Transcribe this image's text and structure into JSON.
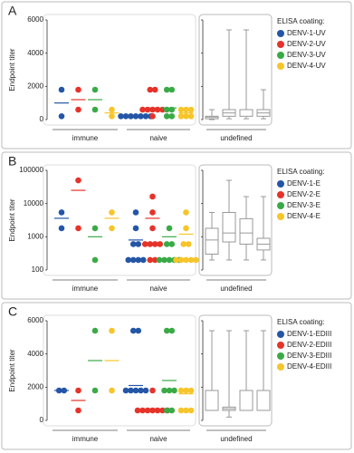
{
  "chart_data": [
    {
      "type": "strip",
      "label": "A",
      "y_label": "Endpoint titer",
      "ylim": [
        0,
        6000
      ],
      "yticks": [
        0,
        2000,
        4000,
        6000
      ],
      "log": false,
      "groups": [
        "immune",
        "naive",
        "undefined"
      ],
      "legend_title": "ELISA coating:",
      "series": [
        {
          "name": "DENV-1-UV",
          "color": "#2456a6",
          "immune": [
            1800,
            200
          ],
          "immune_mean": 1000,
          "naive": [
            200,
            200,
            200,
            200,
            200,
            200,
            200
          ],
          "naive_mean": 200,
          "undefined_box": [
            0,
            50,
            150,
            200,
            600
          ]
        },
        {
          "name": "DENV-2-UV",
          "color": "#e6332a",
          "immune": [
            1800,
            600
          ],
          "immune_mean": 1200,
          "naive": [
            1800,
            1800,
            600,
            600,
            600,
            600,
            600,
            200
          ],
          "naive_mean": 700,
          "undefined_box": [
            50,
            200,
            400,
            600,
            5400
          ]
        },
        {
          "name": "DENV-3-UV",
          "color": "#3aaa47",
          "immune": [
            1800,
            600
          ],
          "immune_mean": 1200,
          "naive": [
            1800,
            1800,
            600,
            600,
            200,
            200
          ],
          "naive_mean": 700,
          "undefined_box": [
            50,
            200,
            600,
            600,
            5400
          ]
        },
        {
          "name": "DENV-4-UV",
          "color": "#f6c52a",
          "immune": [
            200,
            600
          ],
          "immune_mean": 400,
          "naive": [
            600,
            600,
            200,
            200,
            200,
            600
          ],
          "naive_mean": 400,
          "undefined_box": [
            50,
            200,
            400,
            600,
            1800
          ]
        }
      ]
    },
    {
      "type": "strip",
      "label": "B",
      "y_label": "Endpoint titer",
      "ylim": [
        100,
        100000
      ],
      "yticks": [
        100,
        1000,
        10000,
        100000
      ],
      "log": true,
      "groups": [
        "immune",
        "naive",
        "undefined"
      ],
      "legend_title": "ELISA coating:",
      "series": [
        {
          "name": "DENV-1-E",
          "color": "#2456a6",
          "immune": [
            5400,
            1800
          ],
          "immune_mean": 3600,
          "naive": [
            5400,
            1800,
            600,
            600,
            200,
            200,
            200,
            200
          ],
          "naive_mean": 800,
          "undefined_box": [
            200,
            300,
            800,
            1800,
            5400
          ]
        },
        {
          "name": "DENV-2-E",
          "color": "#e6332a",
          "immune": [
            50000,
            1800
          ],
          "immune_mean": 25000,
          "naive": [
            16200,
            5400,
            1800,
            600,
            600,
            600,
            600,
            200,
            200
          ],
          "naive_mean": 3600,
          "undefined_box": [
            200,
            700,
            1300,
            5400,
            50000
          ]
        },
        {
          "name": "DENV-3-E",
          "color": "#3aaa47",
          "immune": [
            1800,
            200
          ],
          "immune_mean": 1000,
          "naive": [
            1800,
            600,
            600,
            200,
            200,
            200,
            200,
            200
          ],
          "naive_mean": 1000,
          "undefined_box": [
            200,
            600,
            1300,
            3500,
            16200
          ]
        },
        {
          "name": "DENV-4-E",
          "color": "#f6c52a",
          "immune": [
            5400,
            1800
          ],
          "immune_mean": 3600,
          "naive": [
            5400,
            1800,
            600,
            600,
            200,
            200,
            200,
            200,
            200
          ],
          "naive_mean": 1200,
          "undefined_box": [
            200,
            400,
            600,
            900,
            16200
          ]
        }
      ]
    },
    {
      "type": "strip",
      "label": "C",
      "y_label": "Endpoint titer",
      "ylim": [
        0,
        6000
      ],
      "yticks": [
        0,
        2000,
        4000,
        6000
      ],
      "log": false,
      "groups": [
        "immune",
        "naive",
        "undefined"
      ],
      "legend_title": "ELISA coating:",
      "series": [
        {
          "name": "DENV-1-EDIII",
          "color": "#2456a6",
          "immune": [
            1800,
            1800
          ],
          "immune_mean": 1800,
          "naive": [
            5400,
            5400,
            1800,
            1800,
            1800,
            1800,
            1800
          ],
          "naive_mean": 2100,
          "undefined_box": [
            600,
            600,
            1800,
            1800,
            5400
          ]
        },
        {
          "name": "DENV-2-EDIII",
          "color": "#e6332a",
          "immune": [
            1800,
            600
          ],
          "immune_mean": 1200,
          "naive": [
            1800,
            600,
            600,
            600,
            600,
            600,
            600,
            600
          ],
          "naive_mean": 700,
          "undefined_box": [
            200,
            600,
            700,
            800,
            5400
          ]
        },
        {
          "name": "DENV-3-EDIII",
          "color": "#3aaa47",
          "immune": [
            5400,
            1800
          ],
          "immune_mean": 3600,
          "naive": [
            5400,
            5400,
            1800,
            1800,
            1800,
            600,
            600
          ],
          "naive_mean": 2400,
          "undefined_box": [
            600,
            600,
            1800,
            1800,
            5400
          ]
        },
        {
          "name": "DENV-4-EDIII",
          "color": "#f6c52a",
          "immune": [
            5400,
            1800
          ],
          "immune_mean": 3600,
          "naive": [
            1800,
            1800,
            1800,
            600,
            600,
            600
          ],
          "naive_mean": 1600,
          "undefined_box": [
            600,
            600,
            1800,
            1800,
            5400
          ]
        }
      ]
    }
  ]
}
